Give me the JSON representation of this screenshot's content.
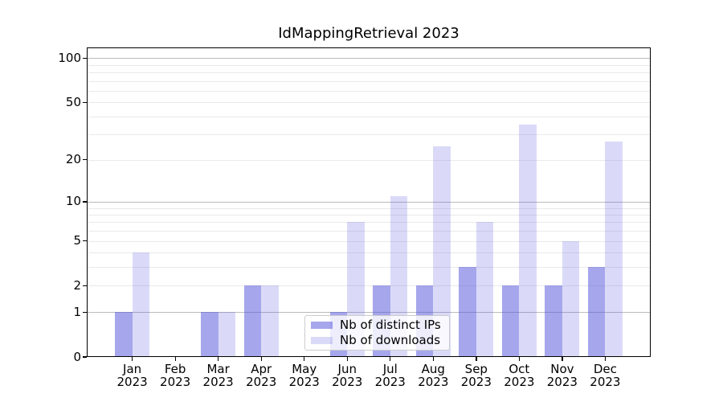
{
  "title": "IdMappingRetrieval 2023",
  "chart_data": {
    "type": "bar",
    "title": "IdMappingRetrieval 2023",
    "categories": [
      "Jan 2023",
      "Feb 2023",
      "Mar 2023",
      "Apr 2023",
      "May 2023",
      "Jun 2023",
      "Jul 2023",
      "Aug 2023",
      "Sep 2023",
      "Oct 2023",
      "Nov 2023",
      "Dec 2023"
    ],
    "series": [
      {
        "name": "Nb of distinct IPs",
        "color": "rgba(85,85,221,0.52)",
        "values": [
          1,
          0,
          1,
          2,
          0,
          1,
          2,
          2,
          3,
          2,
          2,
          3
        ]
      },
      {
        "name": "Nb of downloads",
        "color": "rgba(85,85,221,0.22)",
        "values": [
          4,
          0,
          1,
          2,
          0,
          7,
          11,
          25,
          7,
          35,
          5,
          27
        ]
      }
    ],
    "xlabel": "",
    "ylabel": "",
    "yscale": "log1p",
    "ylim": [
      0,
      118
    ],
    "y_ticks": [
      0,
      1,
      2,
      5,
      10,
      20,
      50,
      100
    ],
    "y_major_gridlines": [
      1,
      10,
      100
    ],
    "y_minor_gridlines": [
      2,
      3,
      4,
      5,
      6,
      7,
      8,
      9,
      20,
      30,
      40,
      50,
      60,
      70,
      80,
      90
    ],
    "grid": true,
    "legend_position": "lower center"
  },
  "colors": {
    "axis": "#000000",
    "grid_major": "#bbbbbb",
    "grid_minor": "#e9e9e9",
    "text": "#000000",
    "legend_border": "#cccccc",
    "legend_background": "rgba(255,255,255,0.8)"
  }
}
